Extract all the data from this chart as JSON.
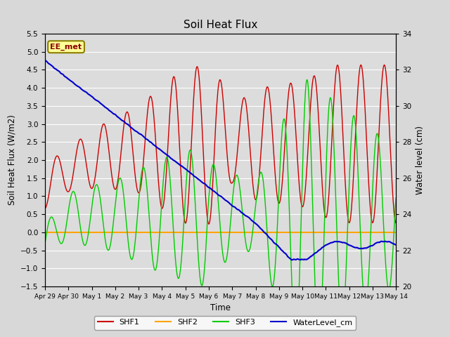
{
  "title": "Soil Heat Flux",
  "ylabel_left": "Soil Heat Flux (W/m2)",
  "ylabel_right": "Water level (cm)",
  "xlabel": "Time",
  "ylim_left": [
    -1.5,
    5.5
  ],
  "ylim_right": [
    20,
    34
  ],
  "annotation_text": "EE_met",
  "annotation_color": "#8B0000",
  "annotation_bg": "#FFFF99",
  "annotation_border": "#8B8000",
  "bg_color": "#D8D8D8",
  "plot_bg": "#DCDCDC",
  "grid_color": "white",
  "colors": {
    "SHF1": "#CC0000",
    "SHF2": "#FFA500",
    "SHF3": "#00CC00",
    "WaterLevel": "#0000CC"
  },
  "legend_labels": [
    "SHF1",
    "SHF2",
    "SHF3",
    "WaterLevel_cm"
  ],
  "x_tick_labels": [
    "Apr 29",
    "Apr 30",
    "May 1",
    "May 2",
    "May 3",
    "May 4",
    "May 5",
    "May 6",
    "May 7",
    "May 8",
    "May 9",
    "May 10",
    "May 11",
    "May 12",
    "May 13",
    "May 14"
  ],
  "yticks_left": [
    -1.5,
    -1.0,
    -0.5,
    0.0,
    0.5,
    1.0,
    1.5,
    2.0,
    2.5,
    3.0,
    3.5,
    4.0,
    4.5,
    5.0,
    5.5
  ],
  "yticks_right": [
    20,
    22,
    24,
    26,
    28,
    30,
    32,
    34
  ]
}
